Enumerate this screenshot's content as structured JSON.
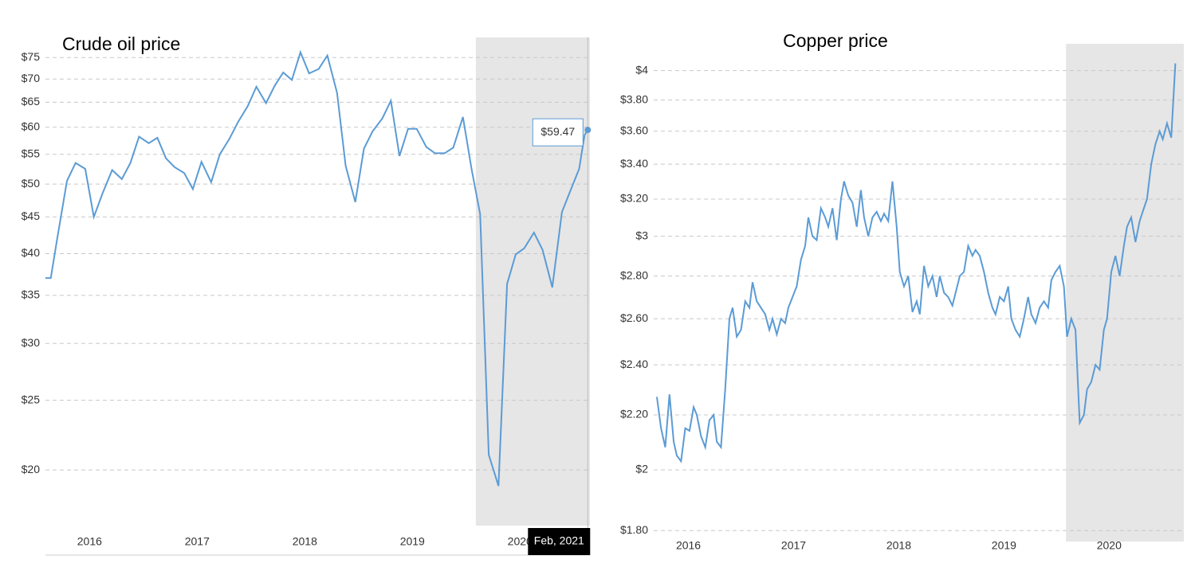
{
  "chart_data": [
    {
      "type": "line",
      "title": "Crude oil price",
      "log_y": true,
      "grid": true,
      "color": "#5b9bd5",
      "highlight_x": [
        2020.09,
        2021.15
      ],
      "x": [
        2016.09,
        2016.14,
        2016.2,
        2016.29,
        2016.37,
        2016.46,
        2016.54,
        2016.62,
        2016.71,
        2016.8,
        2016.88,
        2016.96,
        2017.05,
        2017.13,
        2017.21,
        2017.29,
        2017.38,
        2017.46,
        2017.54,
        2017.63,
        2017.71,
        2017.8,
        2017.88,
        2017.97,
        2018.05,
        2018.14,
        2018.22,
        2018.3,
        2018.38,
        2018.46,
        2018.54,
        2018.63,
        2018.71,
        2018.8,
        2018.88,
        2018.97,
        2019.05,
        2019.13,
        2019.22,
        2019.3,
        2019.38,
        2019.46,
        2019.54,
        2019.63,
        2019.71,
        2019.8,
        2019.88,
        2019.97,
        2020.05,
        2020.13,
        2020.21,
        2020.3,
        2020.38,
        2020.46,
        2020.54,
        2020.63,
        2020.71,
        2020.8,
        2020.89,
        2020.97,
        2021.05,
        2021.1,
        2021.13
      ],
      "values": [
        37,
        37,
        42,
        50.5,
        53.5,
        52.5,
        45,
        48.5,
        52.3,
        50.8,
        53.5,
        58.2,
        57,
        58,
        54.3,
        52.8,
        51.8,
        49.2,
        53.7,
        50.3,
        55,
        57.8,
        61,
        64.2,
        68.3,
        64.8,
        68.5,
        71.5,
        69.8,
        76.3,
        71.3,
        72.3,
        75.5,
        67,
        53,
        47.2,
        56,
        59.2,
        61.7,
        65.3,
        54.7,
        59.7,
        59.7,
        56.3,
        55.2,
        55.2,
        56.2,
        62,
        52.5,
        45.4,
        21,
        19,
        36.3,
        39.9,
        40.7,
        42.8,
        40.5,
        35.9,
        45.7,
        49,
        52.5,
        58.5,
        59.47
      ],
      "tooltip": {
        "value_label": "$59.47",
        "date": "Feb, 2021"
      },
      "xlim": [
        2016.09,
        2021.15
      ],
      "xticks": [
        {
          "value": 2016.5,
          "label": "2016"
        },
        {
          "value": 2017.5,
          "label": "2017"
        },
        {
          "value": 2018.5,
          "label": "2018"
        },
        {
          "value": 2019.5,
          "label": "2019"
        },
        {
          "value": 2020.5,
          "label": "2020"
        }
      ],
      "ylim": [
        16.73,
        80
      ],
      "yticks": [
        {
          "value": 20,
          "label": "$20"
        },
        {
          "value": 25,
          "label": "$25"
        },
        {
          "value": 30,
          "label": "$30"
        },
        {
          "value": 35,
          "label": "$35"
        },
        {
          "value": 40,
          "label": "$40"
        },
        {
          "value": 45,
          "label": "$45"
        },
        {
          "value": 50,
          "label": "$50"
        },
        {
          "value": 55,
          "label": "$55"
        },
        {
          "value": 60,
          "label": "$60"
        },
        {
          "value": 65,
          "label": "$65"
        },
        {
          "value": 70,
          "label": "$70"
        },
        {
          "value": 75,
          "label": "$75"
        }
      ]
    },
    {
      "type": "line",
      "title": "Copper price",
      "log_y": true,
      "grid": true,
      "color": "#5b9bd5",
      "highlight_x": [
        2020.09,
        2021.21
      ],
      "x": [
        2016.2,
        2016.24,
        2016.28,
        2016.32,
        2016.36,
        2016.39,
        2016.43,
        2016.47,
        2016.51,
        2016.55,
        2016.58,
        2016.62,
        2016.66,
        2016.7,
        2016.74,
        2016.77,
        2016.81,
        2016.85,
        2016.89,
        2016.92,
        2016.96,
        2017.0,
        2017.04,
        2017.08,
        2017.11,
        2017.15,
        2017.19,
        2017.23,
        2017.27,
        2017.3,
        2017.34,
        2017.38,
        2017.42,
        2017.45,
        2017.49,
        2017.53,
        2017.57,
        2017.61,
        2017.64,
        2017.68,
        2017.72,
        2017.76,
        2017.8,
        2017.83,
        2017.87,
        2017.91,
        2017.95,
        2017.98,
        2018.02,
        2018.06,
        2018.1,
        2018.14,
        2018.17,
        2018.21,
        2018.25,
        2018.29,
        2018.33,
        2018.36,
        2018.4,
        2018.44,
        2018.48,
        2018.51,
        2018.55,
        2018.59,
        2018.63,
        2018.67,
        2018.7,
        2018.74,
        2018.78,
        2018.82,
        2018.86,
        2018.89,
        2018.93,
        2018.97,
        2019.01,
        2019.04,
        2019.08,
        2019.12,
        2019.16,
        2019.2,
        2019.23,
        2019.27,
        2019.31,
        2019.35,
        2019.39,
        2019.42,
        2019.46,
        2019.5,
        2019.54,
        2019.57,
        2019.61,
        2019.65,
        2019.69,
        2019.73,
        2019.76,
        2019.8,
        2019.84,
        2019.88,
        2019.92,
        2019.95,
        2019.99,
        2020.03,
        2020.07,
        2020.1,
        2020.14,
        2020.18,
        2020.22,
        2020.26,
        2020.29,
        2020.33,
        2020.37,
        2020.41,
        2020.45,
        2020.48,
        2020.52,
        2020.56,
        2020.6,
        2020.64,
        2020.67,
        2020.71,
        2020.75,
        2020.79,
        2020.83,
        2020.86,
        2020.9,
        2020.94,
        2020.98,
        2021.01,
        2021.05,
        2021.09,
        2021.13
      ],
      "values": [
        2.27,
        2.15,
        2.08,
        2.28,
        2.1,
        2.05,
        2.03,
        2.15,
        2.14,
        2.23,
        2.2,
        2.12,
        2.08,
        2.18,
        2.2,
        2.1,
        2.08,
        2.3,
        2.6,
        2.65,
        2.52,
        2.55,
        2.68,
        2.65,
        2.77,
        2.68,
        2.65,
        2.62,
        2.55,
        2.6,
        2.53,
        2.6,
        2.58,
        2.65,
        2.7,
        2.75,
        2.88,
        2.95,
        3.1,
        3.0,
        2.98,
        3.15,
        3.1,
        3.05,
        3.15,
        2.98,
        3.2,
        3.3,
        3.22,
        3.18,
        3.05,
        3.25,
        3.1,
        3.0,
        3.1,
        3.13,
        3.08,
        3.12,
        3.08,
        3.3,
        3.05,
        2.82,
        2.75,
        2.8,
        2.63,
        2.68,
        2.62,
        2.85,
        2.75,
        2.8,
        2.7,
        2.8,
        2.72,
        2.7,
        2.66,
        2.72,
        2.8,
        2.82,
        2.95,
        2.9,
        2.93,
        2.9,
        2.82,
        2.72,
        2.65,
        2.62,
        2.7,
        2.68,
        2.75,
        2.6,
        2.55,
        2.52,
        2.6,
        2.7,
        2.62,
        2.58,
        2.65,
        2.68,
        2.65,
        2.78,
        2.82,
        2.85,
        2.75,
        2.52,
        2.6,
        2.55,
        2.17,
        2.2,
        2.3,
        2.33,
        2.4,
        2.38,
        2.55,
        2.6,
        2.82,
        2.9,
        2.8,
        2.95,
        3.05,
        3.1,
        2.97,
        3.08,
        3.15,
        3.2,
        3.4,
        3.52,
        3.6,
        3.55,
        3.65,
        3.56,
        4.05
      ],
      "xlim": [
        2016.17,
        2021.21
      ],
      "xticks": [
        {
          "value": 2016.5,
          "label": "2016"
        },
        {
          "value": 2017.5,
          "label": "2017"
        },
        {
          "value": 2018.5,
          "label": "2018"
        },
        {
          "value": 2019.5,
          "label": "2019"
        },
        {
          "value": 2020.5,
          "label": "2020"
        }
      ],
      "ylim": [
        1.766,
        4.19
      ],
      "yticks": [
        {
          "value": 1.8,
          "label": "$1.80"
        },
        {
          "value": 2,
          "label": "$2"
        },
        {
          "value": 2.2,
          "label": "$2.20"
        },
        {
          "value": 2.4,
          "label": "$2.40"
        },
        {
          "value": 2.6,
          "label": "$2.60"
        },
        {
          "value": 2.8,
          "label": "$2.80"
        },
        {
          "value": 3,
          "label": "$3"
        },
        {
          "value": 3.2,
          "label": "$3.20"
        },
        {
          "value": 3.4,
          "label": "$3.40"
        },
        {
          "value": 3.6,
          "label": "$3.60"
        },
        {
          "value": 3.8,
          "label": "$3.80"
        },
        {
          "value": 4,
          "label": "$4"
        }
      ]
    }
  ]
}
